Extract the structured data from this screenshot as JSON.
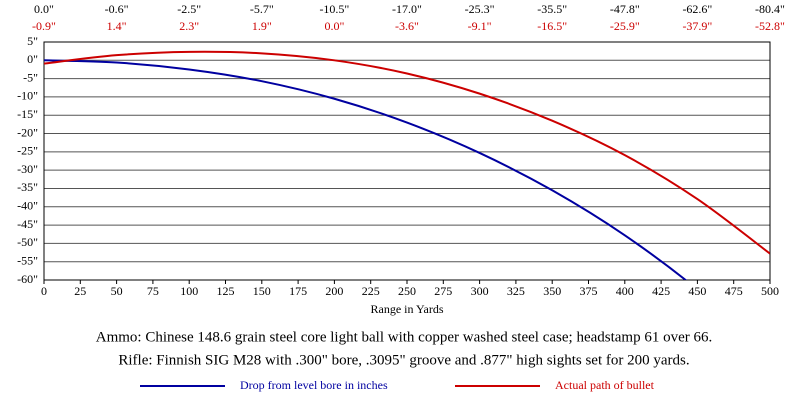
{
  "chart_data": {
    "type": "line",
    "x": [
      0,
      50,
      100,
      150,
      200,
      250,
      300,
      350,
      400,
      450,
      500
    ],
    "series": [
      {
        "name": "Drop from level bore in inches",
        "color": "#0000a0",
        "label_color": "#000000",
        "values": [
          0,
          -0.6,
          -2.5,
          -5.7,
          -10.5,
          -17,
          -25.3,
          -35.5,
          -47.8,
          -62.6,
          -80.4
        ],
        "value_labels": [
          "0.0\"",
          "-0.6\"",
          "-2.5\"",
          "-5.7\"",
          "-10.5\"",
          "-17.0\"",
          "-25.3\"",
          "-35.5\"",
          "-47.8\"",
          "-62.6\"",
          "-80.4\""
        ]
      },
      {
        "name": "Actual path of bullet",
        "color": "#cc0000",
        "label_color": "#cc0000",
        "values": [
          -0.9,
          1.4,
          2.3,
          1.9,
          0,
          -3.6,
          -9.1,
          -16.5,
          -25.9,
          -37.9,
          -52.8
        ],
        "value_labels": [
          "-0.9\"",
          "1.4\"",
          "2.3\"",
          "1.9\"",
          "0.0\"",
          "-3.6\"",
          "-9.1\"",
          "-16.5\"",
          "-25.9\"",
          "-37.9\"",
          "-52.8\""
        ]
      }
    ],
    "xlabel": "Range in Yards",
    "xlim": [
      0,
      500
    ],
    "xticks": [
      0,
      25,
      50,
      75,
      100,
      125,
      150,
      175,
      200,
      225,
      250,
      275,
      300,
      325,
      350,
      375,
      400,
      425,
      450,
      475,
      500
    ],
    "ylim": [
      -60,
      5
    ],
    "yticks": [
      {
        "value": 5,
        "label": "5\""
      },
      {
        "value": 0,
        "label": "0\""
      },
      {
        "value": -5,
        "label": "-5\""
      },
      {
        "value": -10,
        "label": "-10\""
      },
      {
        "value": -15,
        "label": "-15\""
      },
      {
        "value": -20,
        "label": "-20\""
      },
      {
        "value": -25,
        "label": "-25\""
      },
      {
        "value": -30,
        "label": "-30\""
      },
      {
        "value": -35,
        "label": "-35\""
      },
      {
        "value": -40,
        "label": "-40\""
      },
      {
        "value": -45,
        "label": "-45\""
      },
      {
        "value": -50,
        "label": "-50\""
      },
      {
        "value": -55,
        "label": "-55\""
      },
      {
        "value": -60,
        "label": "-60\""
      }
    ],
    "grid": true,
    "annotations": [
      "Ammo:  Chinese 148.6 grain steel core light ball with copper washed steel case; headstamp 61 over 66.",
      "Rifle:  Finnish SIG M28 with .300\" bore, .3095\" groove and .877\" high sights set for 200 yards."
    ]
  }
}
